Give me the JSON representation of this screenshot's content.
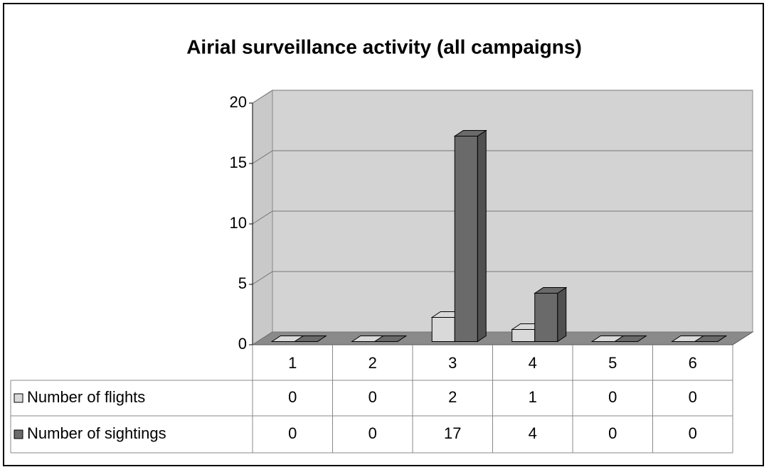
{
  "chart_data": {
    "type": "bar3d",
    "title": "Airial surveillance activity (all campaigns)",
    "categories": [
      "1",
      "2",
      "3",
      "4",
      "5",
      "6"
    ],
    "series": [
      {
        "name": "Number of flights",
        "color": "#d9d9d9",
        "values": [
          0,
          0,
          2,
          1,
          0,
          0
        ]
      },
      {
        "name": "Number of sightings",
        "color": "#6a6a6a",
        "values": [
          0,
          0,
          17,
          4,
          0,
          0
        ]
      }
    ],
    "ylim": [
      0,
      20
    ],
    "yticks": [
      0,
      5,
      10,
      15,
      20
    ],
    "grid": true
  }
}
